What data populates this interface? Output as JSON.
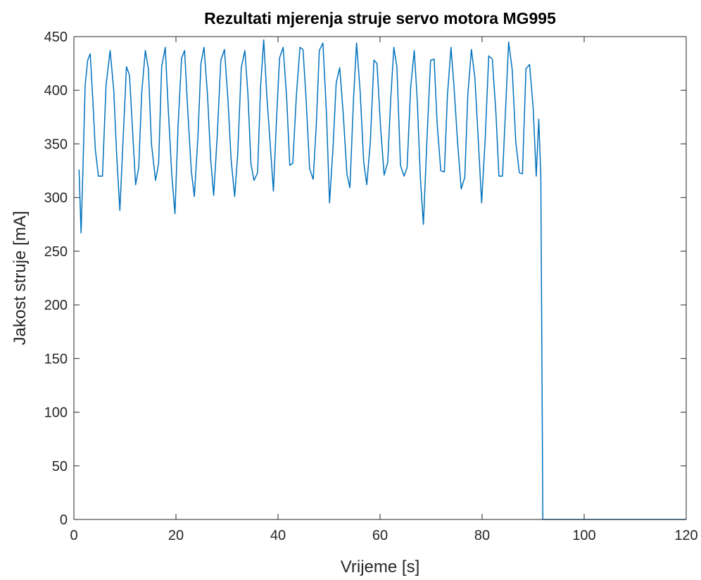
{
  "chart_data": {
    "type": "line",
    "title": "Rezultati mjerenja struje servo motora MG995",
    "xlabel": "Vrijeme [s]",
    "ylabel": "Jakost struje [mA]",
    "xlim": [
      0,
      120
    ],
    "ylim": [
      0,
      450
    ],
    "xticks": [
      0,
      20,
      40,
      60,
      80,
      100,
      120
    ],
    "yticks": [
      0,
      50,
      100,
      150,
      200,
      250,
      300,
      350,
      400,
      450
    ],
    "grid": false,
    "box": true,
    "series": [
      {
        "color": "#0072BD",
        "x": [
          1.0,
          1.4,
          1.8,
          2.2,
          2.7,
          3.2,
          3.7,
          4.2,
          4.8,
          5.6,
          6.3,
          7.1,
          7.8,
          8.4,
          9.0,
          9.6,
          10.3,
          10.9,
          11.5,
          12.1,
          12.7,
          13.3,
          14.0,
          14.6,
          15.2,
          16.0,
          16.6,
          17.2,
          17.9,
          18.5,
          19.2,
          19.8,
          20.4,
          21.1,
          21.7,
          22.3,
          23.0,
          23.6,
          24.3,
          24.9,
          25.5,
          26.2,
          26.8,
          27.4,
          28.1,
          28.8,
          29.5,
          30.2,
          30.8,
          31.5,
          32.1,
          32.8,
          33.5,
          34.1,
          34.7,
          35.3,
          36.0,
          36.6,
          37.2,
          37.8,
          38.5,
          39.1,
          39.7,
          40.3,
          41.0,
          41.7,
          42.3,
          42.9,
          43.6,
          44.3,
          44.9,
          45.5,
          46.2,
          46.9,
          47.5,
          48.1,
          48.8,
          49.5,
          50.1,
          50.8,
          51.4,
          52.1,
          52.8,
          53.5,
          54.1,
          54.8,
          55.4,
          56.1,
          56.8,
          57.4,
          58.1,
          58.8,
          59.4,
          60.1,
          60.8,
          61.5,
          62.1,
          62.7,
          63.3,
          64.0,
          64.7,
          65.3,
          66.0,
          66.7,
          67.3,
          67.9,
          68.5,
          69.2,
          69.9,
          70.6,
          71.2,
          71.9,
          72.6,
          73.2,
          73.9,
          74.5,
          75.2,
          75.9,
          76.6,
          77.2,
          77.9,
          78.6,
          79.2,
          79.9,
          80.6,
          81.3,
          82.0,
          82.7,
          83.3,
          84.0,
          84.6,
          85.2,
          85.9,
          86.6,
          87.3,
          87.9,
          88.6,
          89.3,
          90.0,
          90.6,
          91.1,
          91.5,
          91.9,
          120.0
        ],
        "y": [
          326,
          267,
          330,
          405,
          428,
          434,
          392,
          345,
          320,
          320,
          405,
          437,
          400,
          338,
          288,
          350,
          422,
          414,
          362,
          312,
          328,
          398,
          437,
          420,
          350,
          316,
          332,
          422,
          440,
          382,
          320,
          285,
          365,
          430,
          437,
          382,
          325,
          301,
          356,
          425,
          440,
          395,
          336,
          302,
          358,
          428,
          438,
          391,
          336,
          301,
          340,
          421,
          437,
          397,
          331,
          316,
          323,
          404,
          447,
          395,
          348,
          306,
          372,
          430,
          440,
          393,
          330,
          332,
          395,
          440,
          438,
          392,
          327,
          317,
          368,
          437,
          444,
          378,
          295,
          348,
          407,
          421,
          377,
          322,
          309,
          392,
          444,
          399,
          333,
          312,
          352,
          428,
          425,
          366,
          321,
          333,
          392,
          440,
          422,
          330,
          320,
          328,
          403,
          437,
          390,
          318,
          275,
          355,
          428,
          429,
          368,
          325,
          324,
          395,
          440,
          403,
          351,
          308,
          319,
          396,
          438,
          411,
          358,
          295,
          355,
          432,
          429,
          379,
          320,
          320,
          382,
          445,
          419,
          352,
          323,
          322,
          420,
          424,
          384,
          320,
          373,
          320,
          0,
          0
        ]
      }
    ]
  }
}
